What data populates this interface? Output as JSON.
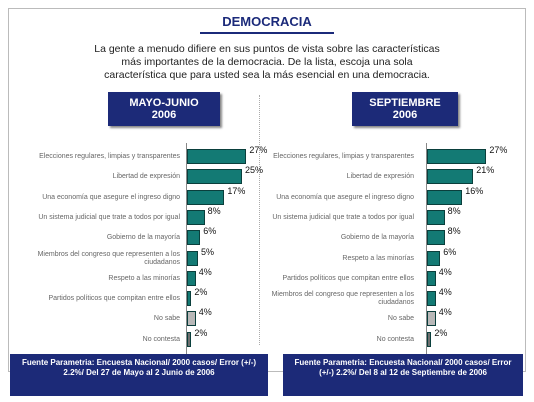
{
  "title": "DEMOCRACIA",
  "intro": "La gente a menudo difiere en sus puntos de vista sobre las características más importantes de la democracia. De la lista, escoja una sola característica que para usted sea la más esencial en una democracia.",
  "chart_data": [
    {
      "type": "bar",
      "orientation": "horizontal",
      "title": "MAYO-JUNIO 2006",
      "categories": [
        "Elecciones regulares, limpias y transparentes",
        "Libertad de expresión",
        "Una economía que asegure el ingreso digno",
        "Un sistema judicial que trate a todos por igual",
        "Gobierno de la mayoría",
        "Miembros del congreso que representen a los ciudadanos",
        "Respeto a las minorías",
        "Partidos políticos que compitan entre ellos",
        "No sabe",
        "No contesta"
      ],
      "values": [
        27,
        25,
        17,
        8,
        6,
        5,
        4,
        2,
        4,
        2
      ],
      "value_labels": [
        "27%",
        "25%",
        "17%",
        "8%",
        "6%",
        "5%",
        "4%",
        "2%",
        "4%",
        "2%"
      ],
      "colors": [
        "#137a74",
        "#137a74",
        "#137a74",
        "#137a74",
        "#137a74",
        "#137a74",
        "#137a74",
        "#137a74",
        "#b8b8b8",
        "#707070"
      ],
      "source": "Fuente Parametria: Encuesta Nacional/ 2000 casos/ Error (+/-) 2.2%/ Del 27 de Mayo al 2 Junio de 2006"
    },
    {
      "type": "bar",
      "orientation": "horizontal",
      "title": "SEPTIEMBRE 2006",
      "categories": [
        "Elecciones regulares, limpias y transparentes",
        "Libertad de expresión",
        "Una economía que asegure el ingreso digno",
        "Un sistema judicial que trate a todos por igual",
        "Gobierno de la mayoría",
        "Respeto a las minorías",
        "Partidos políticos que compitan entre ellos",
        "Miembros del congreso que representen a los ciudadanos",
        "No sabe",
        "No contesta"
      ],
      "values": [
        27,
        21,
        16,
        8,
        8,
        6,
        4,
        4,
        4,
        2
      ],
      "value_labels": [
        "27%",
        "21%",
        "16%",
        "8%",
        "8%",
        "6%",
        "4%",
        "4%",
        "4%",
        "2%"
      ],
      "colors": [
        "#137a74",
        "#137a74",
        "#137a74",
        "#137a74",
        "#137a74",
        "#137a74",
        "#137a74",
        "#137a74",
        "#b8b8b8",
        "#707070"
      ],
      "source": "Fuente Parametria: Encuesta Nacional/ 2000 casos/ Error (+/-) 2.2%/ Del 8 al 12 de Septiembre de 2006"
    }
  ]
}
